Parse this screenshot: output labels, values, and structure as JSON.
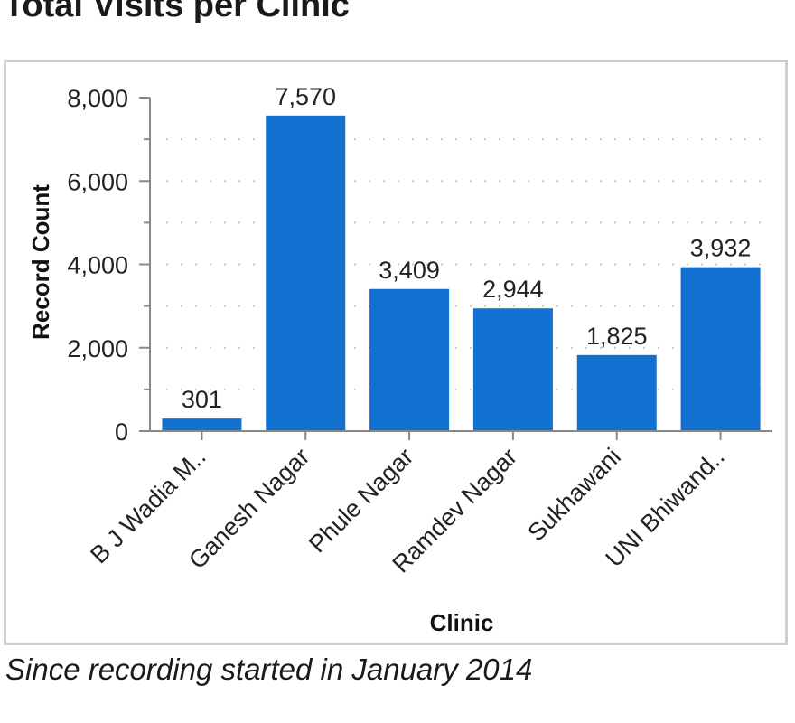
{
  "page": {
    "title": "Total Visits per Clinic",
    "caption": "Since recording started in January 2014"
  },
  "chart_data": {
    "type": "bar",
    "title": "Total Visits per Clinic",
    "xlabel": "Clinic",
    "ylabel": "Record Count",
    "categories": [
      "B J Wadia M..",
      "Ganesh Nagar",
      "Phule Nagar",
      "Ramdev Nagar",
      "Sukhawani",
      "UNI Bhiwand.."
    ],
    "values": [
      301,
      7570,
      3409,
      2944,
      1825,
      3932
    ],
    "data_labels": [
      "301",
      "7,570",
      "3,409",
      "2,944",
      "1,825",
      "3,932"
    ],
    "ylim": [
      0,
      8000
    ],
    "yticks": [
      0,
      2000,
      4000,
      6000,
      8000
    ],
    "ytick_labels": [
      "0",
      "2,000",
      "4,000",
      "6,000",
      "8,000"
    ],
    "grid": true,
    "bar_color": "#1170d0",
    "grid_color": "#c8c8c8",
    "axis_color": "#888888"
  }
}
